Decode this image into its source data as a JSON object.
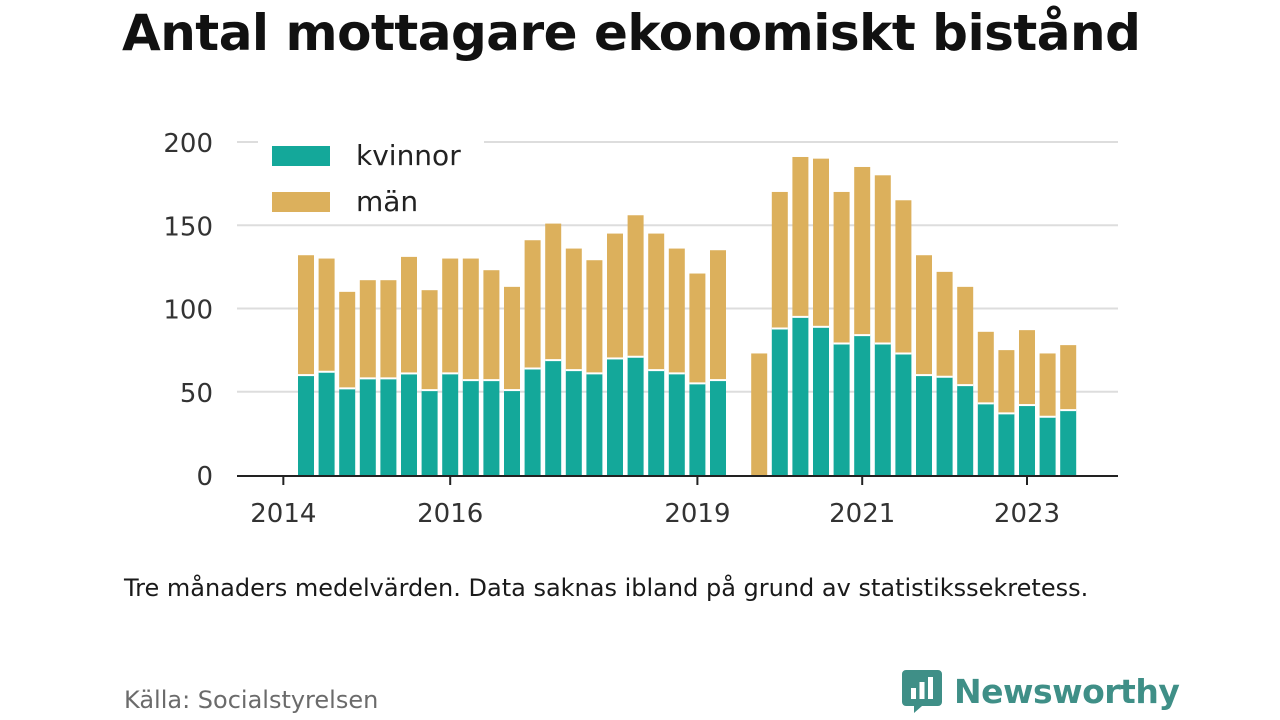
{
  "title": "Antal mottagare ekonomiskt bistånd",
  "note": "Tre månaders medelvärden. Data saknas ibland på grund av statistikssekretess.",
  "source": "Källa: Socialstyrelsen",
  "brand": {
    "name": "Newsworthy",
    "icon": "chat-bar-chart-icon",
    "color": "#3f8f87"
  },
  "colors": {
    "kvinnor": "#14a89a",
    "man": "#dcb05c",
    "grid": "#dddddd",
    "axis": "#222222"
  },
  "chart_data": {
    "type": "bar",
    "stacked": true,
    "ylim": [
      0,
      200
    ],
    "yticks": [
      0,
      50,
      100,
      150,
      200
    ],
    "x_ticks": [
      {
        "label": "2014",
        "index": -1.1
      },
      {
        "label": "2016",
        "index": 7
      },
      {
        "label": "2019",
        "index": 19
      },
      {
        "label": "2021",
        "index": 27
      },
      {
        "label": "2023",
        "index": 35
      }
    ],
    "legend": {
      "placement": "top-left"
    },
    "series": [
      {
        "name": "kvinnor",
        "color": "#14a89a",
        "values": [
          60,
          62,
          52,
          58,
          58,
          61,
          51,
          61,
          57,
          57,
          51,
          64,
          69,
          63,
          61,
          70,
          71,
          63,
          61,
          55,
          57,
          null,
          null,
          88,
          95,
          89,
          79,
          84,
          79,
          73,
          60,
          59,
          54,
          43,
          37,
          42,
          35,
          39
        ]
      },
      {
        "name": "män",
        "color": "#dcb05c",
        "values": [
          72,
          68,
          58,
          59,
          59,
          70,
          60,
          69,
          73,
          66,
          62,
          77,
          82,
          73,
          68,
          75,
          85,
          82,
          75,
          66,
          78,
          null,
          73,
          82,
          96,
          101,
          91,
          101,
          101,
          92,
          72,
          63,
          59,
          43,
          38,
          45,
          38,
          39
        ]
      }
    ]
  }
}
